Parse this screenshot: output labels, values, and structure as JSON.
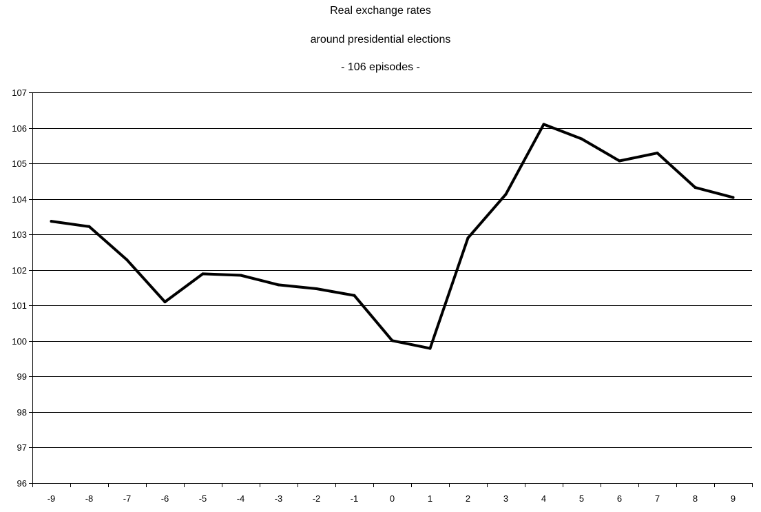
{
  "chart_data": {
    "type": "line",
    "title": [
      "Real exchange rates",
      "around presidential elections",
      "- 106 episodes  -"
    ],
    "xlabel": "",
    "ylabel": "",
    "x": [
      -9,
      -8,
      -7,
      -6,
      -5,
      -4,
      -3,
      -2,
      -1,
      0,
      1,
      2,
      3,
      4,
      5,
      6,
      7,
      8,
      9
    ],
    "x_tick_labels": [
      "-9",
      "-8",
      "-7",
      "-6",
      "-5",
      "-4",
      "-3",
      "-2",
      "-1",
      "0",
      "1",
      "2",
      "3",
      "4",
      "5",
      "6",
      "7",
      "8",
      "9"
    ],
    "series": [
      {
        "values": [
          103.37,
          103.22,
          102.28,
          101.1,
          101.89,
          101.85,
          101.58,
          101.47,
          101.28,
          100.01,
          99.79,
          102.9,
          104.13,
          106.1,
          105.69,
          105.07,
          105.29,
          104.32,
          104.04
        ]
      }
    ],
    "ylim": [
      96,
      107
    ],
    "y_ticks": [
      96,
      97,
      98,
      99,
      100,
      101,
      102,
      103,
      104,
      105,
      106,
      107
    ],
    "grid": "horizontal",
    "legend": "none",
    "colors": {
      "line": "#000000",
      "grid": "#000000",
      "background": "#ffffff"
    }
  }
}
